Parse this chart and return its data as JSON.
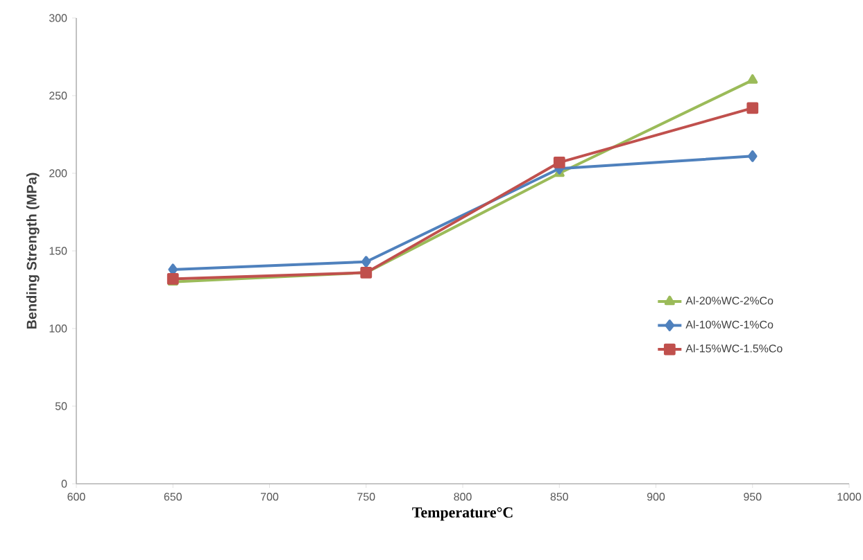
{
  "chart_data": {
    "type": "line",
    "xlabel": "Temperature°C",
    "ylabel": "Bending Strength (MPa)",
    "x": [
      650,
      750,
      850,
      950
    ],
    "series": [
      {
        "name": "Al-20%WC-2%Co",
        "color": "#9bbb59",
        "marker": "triangle",
        "values": [
          130,
          136,
          200,
          260
        ]
      },
      {
        "name": "Al-10%WC-1%Co",
        "color": "#4f81bd",
        "marker": "diamond",
        "values": [
          138,
          143,
          203,
          211
        ]
      },
      {
        "name": "Al-15%WC-1.5%Co",
        "color": "#c0504d",
        "marker": "square",
        "values": [
          132,
          136,
          207,
          242
        ]
      }
    ],
    "xlim": [
      600,
      1000
    ],
    "xticks": [
      600,
      650,
      700,
      750,
      800,
      850,
      900,
      950,
      1000
    ],
    "ylim": [
      0,
      300
    ],
    "yticks": [
      0,
      50,
      100,
      150,
      200,
      250,
      300
    ],
    "grid": false,
    "legend": "right",
    "line_style": "solid"
  }
}
